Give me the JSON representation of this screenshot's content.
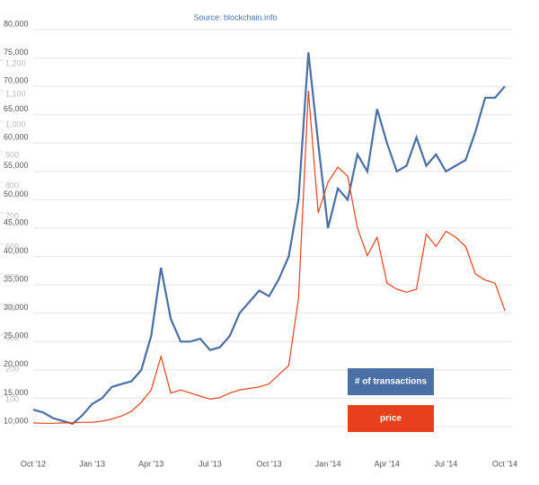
{
  "chart_data": {
    "type": "line",
    "subtitle": "Source: blockchain.info",
    "categories": [
      "Oct '12",
      null,
      null,
      null,
      null,
      null,
      "Jan '13",
      null,
      null,
      null,
      null,
      null,
      "Apr '13",
      null,
      null,
      null,
      null,
      null,
      "Jul '13",
      null,
      null,
      null,
      null,
      null,
      "Oct '13",
      null,
      null,
      null,
      null,
      null,
      "Jan '14",
      null,
      null,
      null,
      null,
      null,
      "Apr '14",
      null,
      null,
      null,
      null,
      null,
      "Jul '14",
      null,
      null,
      null,
      null,
      null,
      "Oct '14"
    ],
    "series": [
      {
        "name": "# of transactions",
        "color": "#4a6fa5",
        "axis": "y",
        "values": [
          13000,
          12500,
          11500,
          11000,
          10500,
          12000,
          14000,
          15000,
          17000,
          17500,
          18000,
          20000,
          26000,
          38000,
          29000,
          25000,
          25000,
          25500,
          23500,
          24000,
          26000,
          30000,
          32000,
          34000,
          33000,
          36000,
          40000,
          50000,
          76000,
          60000,
          45000,
          52000,
          50000,
          58000,
          55000,
          66000,
          60000,
          55000,
          56000,
          61000,
          56000,
          58000,
          55000,
          56000,
          57000,
          62000,
          68000,
          68000,
          70000
        ]
      },
      {
        "name": "price",
        "color": "#e8401c",
        "axis": "y2",
        "values": [
          12,
          11,
          11,
          12,
          13,
          14,
          14,
          18,
          25,
          35,
          50,
          80,
          120,
          230,
          110,
          120,
          110,
          100,
          90,
          95,
          110,
          120,
          125,
          130,
          140,
          170,
          200,
          420,
          1100,
          700,
          800,
          850,
          820,
          650,
          560,
          620,
          470,
          450,
          440,
          450,
          630,
          590,
          640,
          620,
          590,
          500,
          480,
          470,
          380
        ]
      }
    ],
    "ylim": [
      10000,
      80000
    ],
    "yticks": [
      {
        "value": 10000,
        "label": "10,000"
      },
      {
        "value": 15000,
        "label": "15,000"
      },
      {
        "value": 20000,
        "label": "20,000"
      },
      {
        "value": 25000,
        "label": "25,000"
      },
      {
        "value": 30000,
        "label": "30,000"
      },
      {
        "value": 35000,
        "label": "35,000"
      },
      {
        "value": 40000,
        "label": "40,000"
      },
      {
        "value": 45000,
        "label": "45,000"
      },
      {
        "value": 50000,
        "label": "50,000"
      },
      {
        "value": 55000,
        "label": "55,000"
      },
      {
        "value": 60000,
        "label": "60,000"
      },
      {
        "value": 65000,
        "label": "65,000"
      },
      {
        "value": 70000,
        "label": "70,000"
      },
      {
        "value": 75000,
        "label": "75,000"
      },
      {
        "value": 80000,
        "label": "80,000"
      }
    ],
    "y2lim": [
      0,
      1300
    ],
    "y2ticks": [
      100,
      200,
      300,
      400,
      500,
      600,
      700,
      800,
      900,
      {
        "value": 1000,
        "label": "1,000"
      },
      {
        "value": 1100,
        "label": "1,100"
      },
      {
        "value": 1200,
        "label": "1,200"
      }
    ],
    "grid": true,
    "legend": "lower right"
  }
}
